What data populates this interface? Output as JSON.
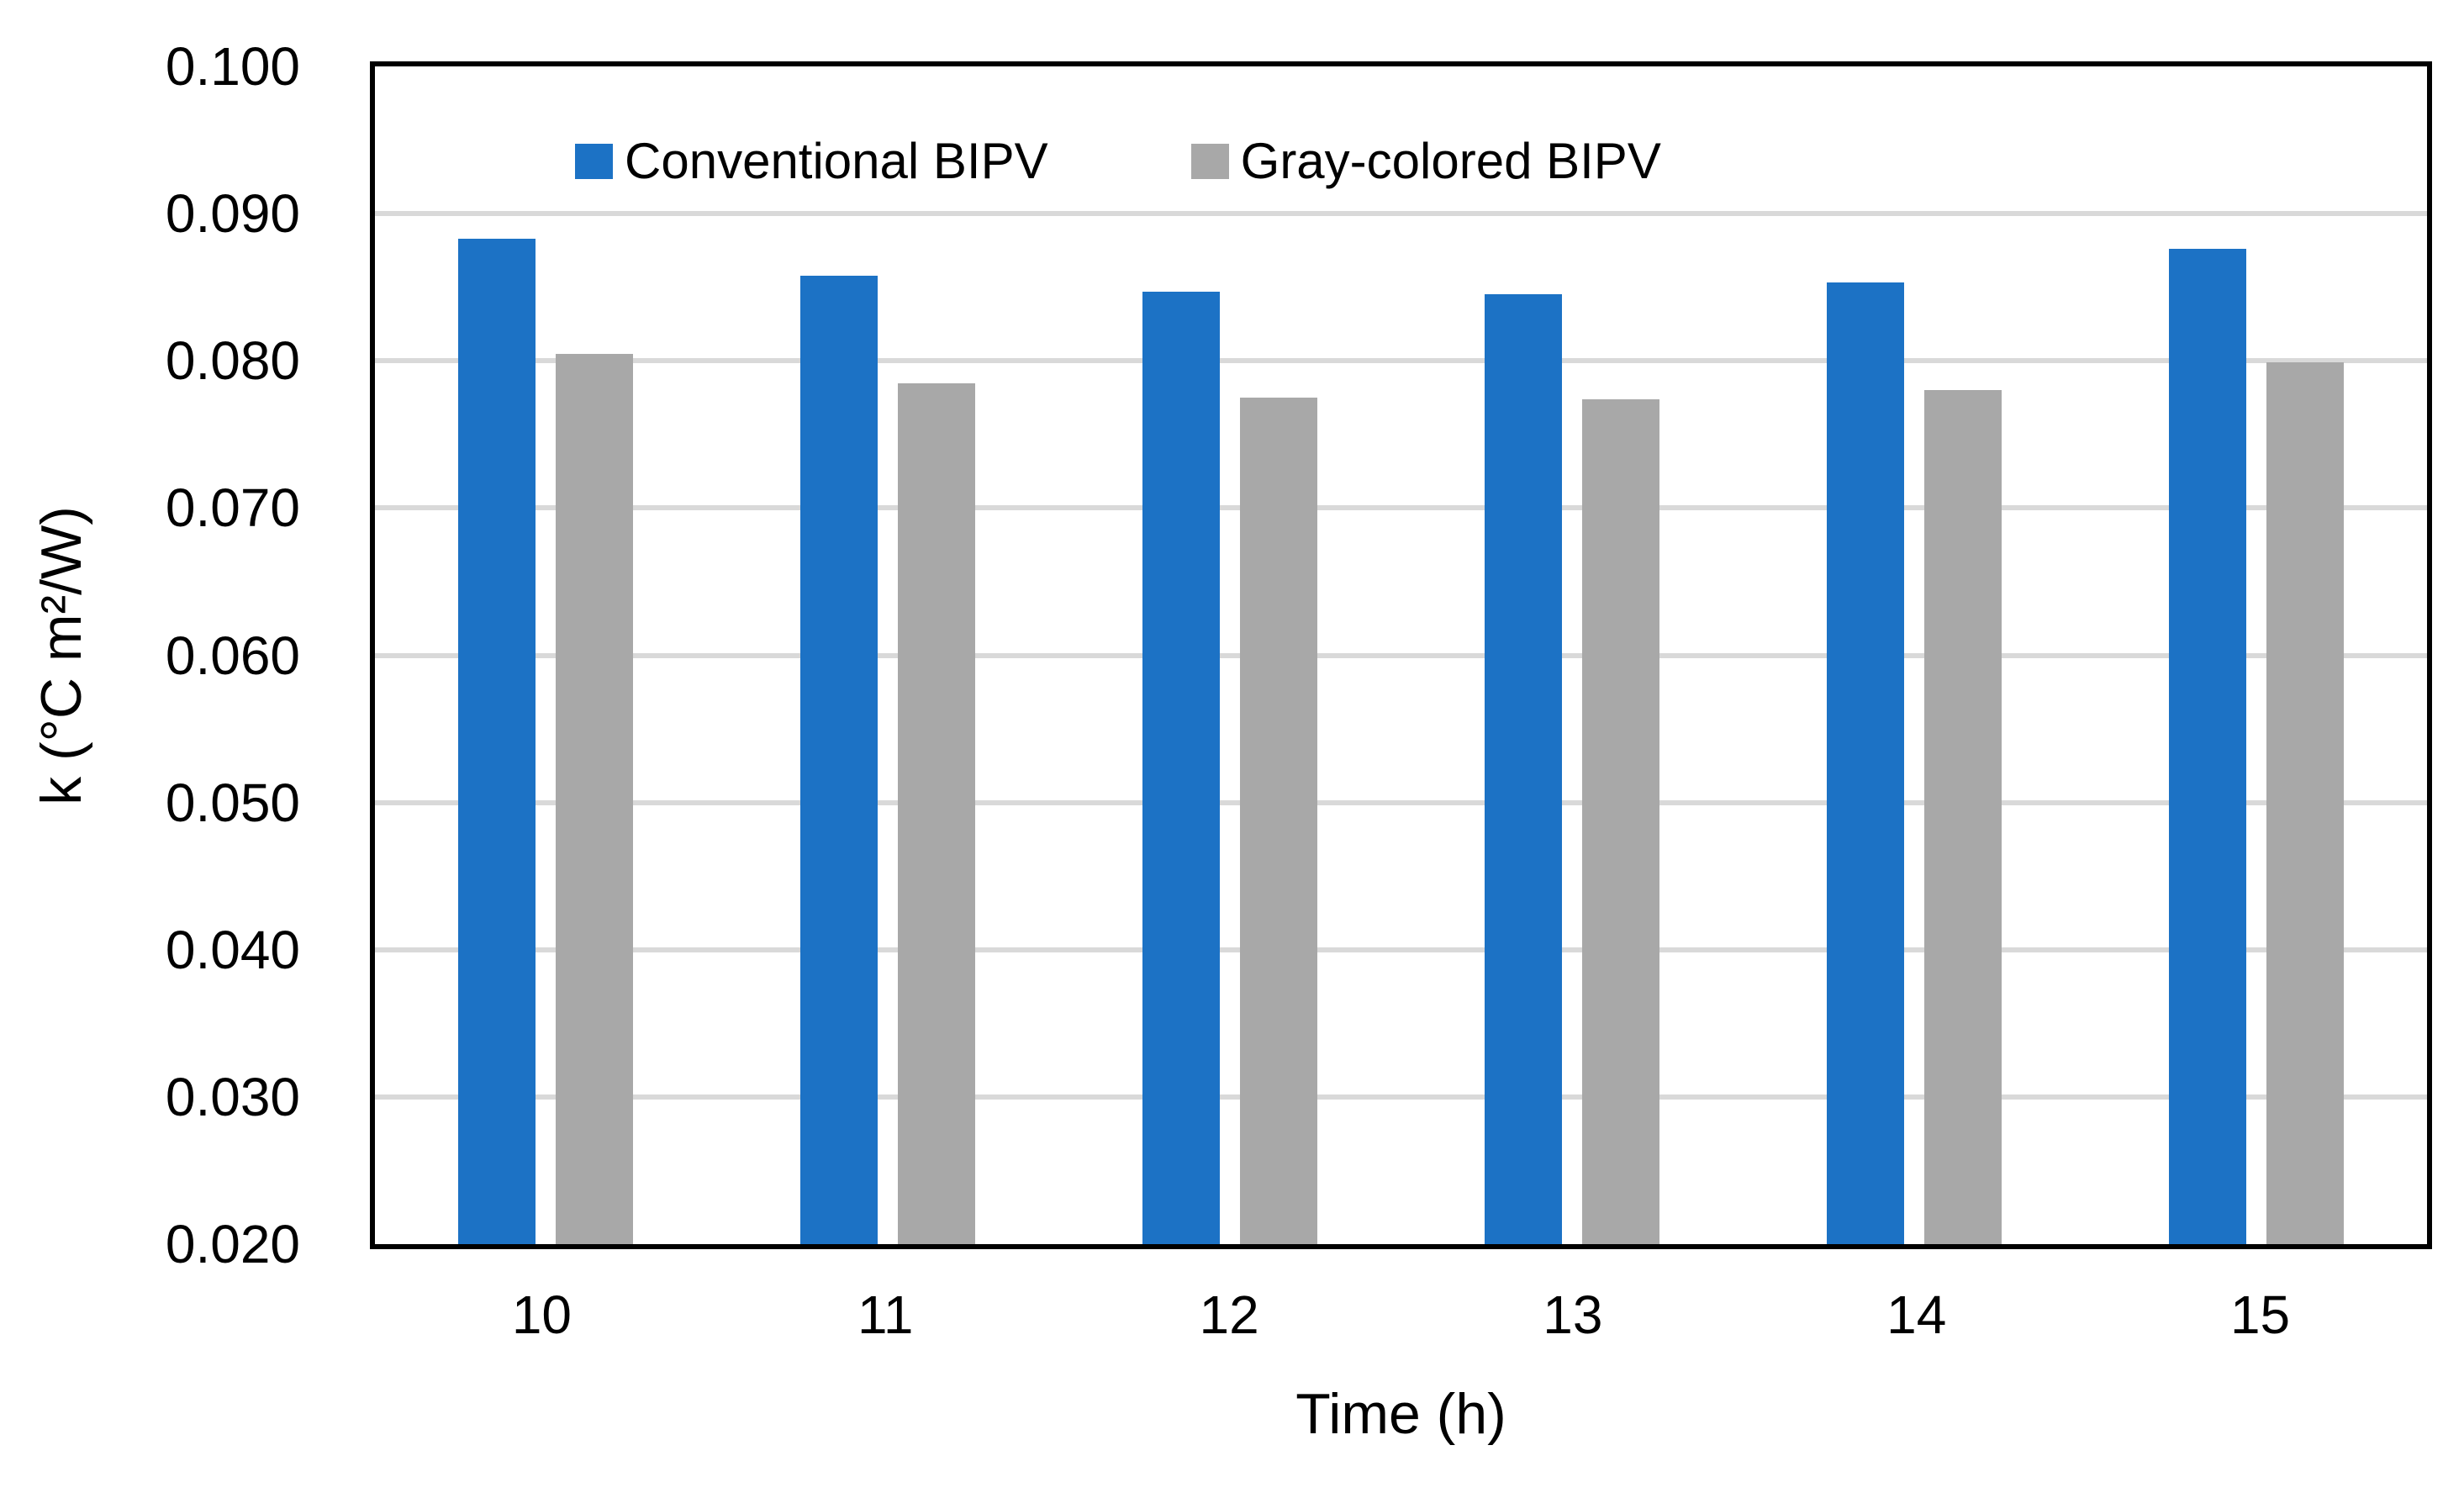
{
  "chart_data": {
    "type": "bar",
    "title": "",
    "xlabel": "Time (h)",
    "ylabel": "k (°C m²/W)",
    "categories": [
      "10",
      "11",
      "12",
      "13",
      "14",
      "15"
    ],
    "series": [
      {
        "name": "Conventional BIPV",
        "color": "#1C72C5",
        "values": [
          0.0883,
          0.0858,
          0.0847,
          0.0845,
          0.0853,
          0.0876
        ]
      },
      {
        "name": "Gray-colored BIPV",
        "color": "#A8A8A8",
        "values": [
          0.0805,
          0.0785,
          0.0775,
          0.0774,
          0.078,
          0.0799
        ]
      }
    ],
    "ylim": [
      0.02,
      0.1
    ],
    "yticks": [
      0.1,
      0.09,
      0.08,
      0.07,
      0.06,
      0.05,
      0.04,
      0.03,
      0.02
    ],
    "ytick_labels": [
      "0.100",
      "0.090",
      "0.080",
      "0.070",
      "0.060",
      "0.050",
      "0.040",
      "0.030",
      "0.020"
    ],
    "grid": "horizontal",
    "gridline_color": "#D9D9D9",
    "axis_border_color": "#000000",
    "legend_position": "top-inside"
  }
}
